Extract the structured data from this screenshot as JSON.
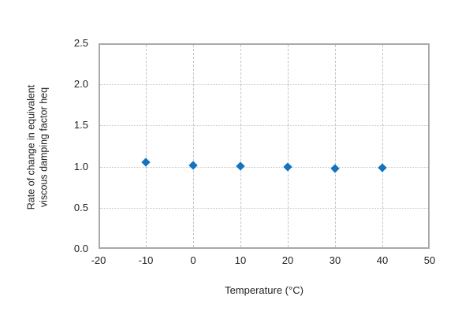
{
  "chart_data": {
    "type": "scatter",
    "title": "",
    "xlabel": "Temperature (°C)",
    "ylabel": "Rate of change in equivalent viscous damping factor heq",
    "ylabel_lines": [
      "Rate of change in equivalent",
      "viscous damping factor  heq"
    ],
    "x": [
      -10,
      0,
      10,
      20,
      30,
      40
    ],
    "y": [
      1.05,
      1.02,
      1.01,
      1.0,
      0.98,
      0.99
    ],
    "xlim": [
      -20,
      50
    ],
    "ylim": [
      0.0,
      2.5
    ],
    "x_ticks": [
      -20,
      -10,
      0,
      10,
      20,
      30,
      40,
      50
    ],
    "y_ticks": [
      0.0,
      0.5,
      1.0,
      1.5,
      2.0,
      2.5
    ],
    "x_tick_labels": [
      "-20",
      "-10",
      "0",
      "10",
      "20",
      "30",
      "40",
      "50"
    ],
    "y_tick_labels": [
      "0.0",
      "0.5",
      "1.0",
      "1.5",
      "2.0",
      "2.5"
    ],
    "grid": "both",
    "grid_style": {
      "horizontal": "dotted",
      "vertical": "dashed"
    },
    "legend": "none",
    "marker": "diamond",
    "colors": {
      "marker": "#1473be",
      "grid": "#c4c4c4",
      "axis_frame": "#a9a9a9",
      "text": "#212121",
      "background": "#ffffff"
    }
  }
}
